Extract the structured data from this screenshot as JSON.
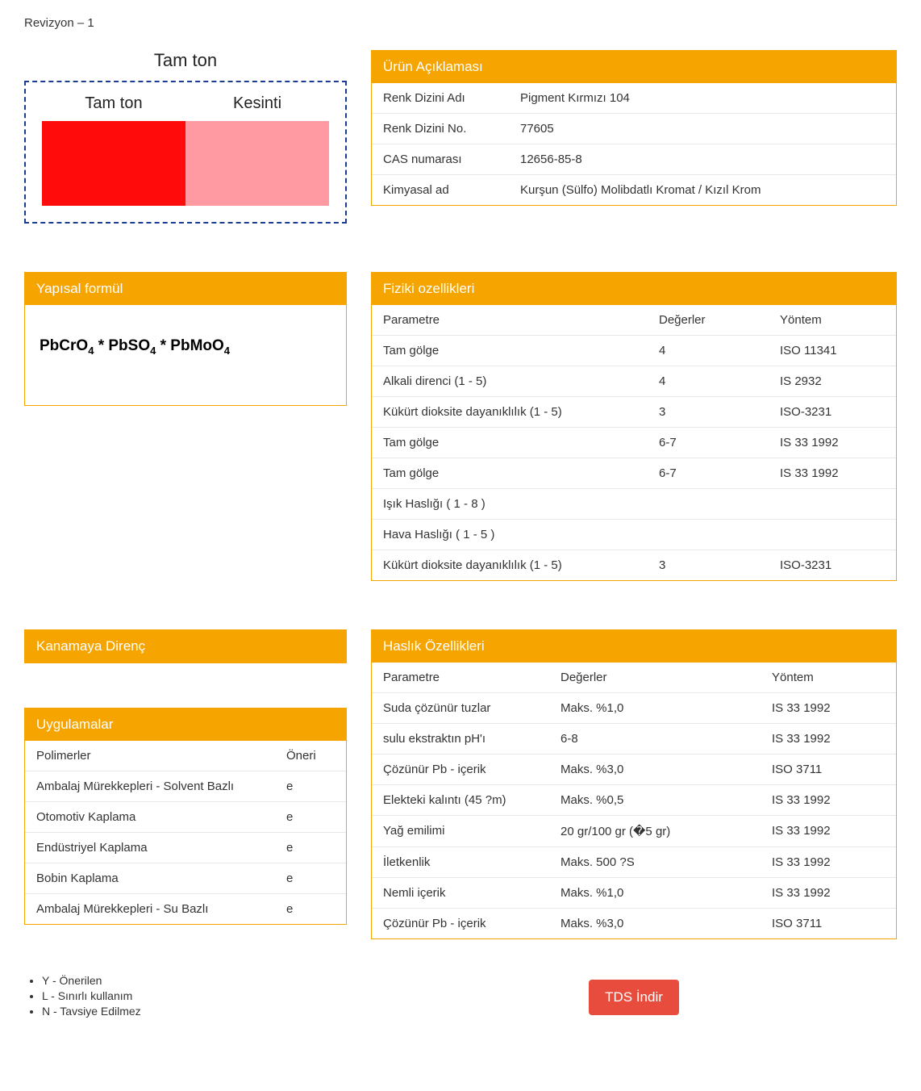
{
  "revision": "Revizyon – 1",
  "swatch": {
    "title": "Tam ton",
    "left_label": "Tam ton",
    "right_label": "Kesinti",
    "left_color": "#ff0b0b",
    "right_color": "#ff9aa3",
    "border_color": "#1a3d8f"
  },
  "product_desc": {
    "title": "Ürün Açıklaması",
    "rows": [
      {
        "label": "Renk Dizini Adı",
        "value": "Pigment Kırmızı 104"
      },
      {
        "label": "Renk Dizini No.",
        "value": "77605"
      },
      {
        "label": "CAS numarası",
        "value": "12656-85-8"
      },
      {
        "label": "Kimyasal ad",
        "value": "Kurşun (Sülfo) Molibdatlı Kromat / Kızıl Krom"
      }
    ]
  },
  "formula": {
    "title": "Yapısal formül",
    "text_parts": [
      "PbCrO",
      "4",
      " * PbSO",
      "4",
      " * PbMoO",
      "4"
    ]
  },
  "physical": {
    "title": "Fiziki ozellikleri",
    "headers": {
      "c1": "Parametre",
      "c2": "Değerler",
      "c3": "Yöntem"
    },
    "rows": [
      {
        "c1": "Tam gölge",
        "c2": "4",
        "c3": "ISO 11341"
      },
      {
        "c1": "Alkali direnci (1 - 5)",
        "c2": "4",
        "c3": "IS 2932"
      },
      {
        "c1": "Kükürt dioksite dayanıklılık (1 - 5)",
        "c2": "3",
        "c3": "ISO-3231"
      },
      {
        "c1": "Tam gölge",
        "c2": "6-7",
        "c3": "IS 33 1992"
      },
      {
        "c1": "Tam gölge",
        "c2": "6-7",
        "c3": "IS 33 1992"
      },
      {
        "c1": "Işık Haslığı ( 1 - 8 )",
        "c2": "",
        "c3": ""
      },
      {
        "c1": "Hava Haslığı ( 1 - 5 )",
        "c2": "",
        "c3": ""
      },
      {
        "c1": "Kükürt dioksite dayanıklılık (1 - 5)",
        "c2": "3",
        "c3": "ISO-3231"
      }
    ]
  },
  "bleeding": {
    "title": "Kanamaya Direnç"
  },
  "applications": {
    "title": "Uygulamalar",
    "headers": {
      "c1": "Polimerler",
      "c2": "Öneri"
    },
    "rows": [
      {
        "c1": "Ambalaj Mürekkepleri - Solvent Bazlı",
        "c2": "e"
      },
      {
        "c1": "Otomotiv Kaplama",
        "c2": "e"
      },
      {
        "c1": "Endüstriyel Kaplama",
        "c2": "e"
      },
      {
        "c1": "Bobin Kaplama",
        "c2": "e"
      },
      {
        "c1": "Ambalaj Mürekkepleri - Su Bazlı",
        "c2": "e"
      }
    ]
  },
  "fastness": {
    "title": "Haslık Özellikleri",
    "headers": {
      "c1": "Parametre",
      "c2": "Değerler",
      "c3": "Yöntem"
    },
    "rows": [
      {
        "c1": "Suda çözünür tuzlar",
        "c2": "Maks. %1,0",
        "c3": "IS 33 1992"
      },
      {
        "c1": "sulu ekstraktın pH'ı",
        "c2": "6-8",
        "c3": "IS 33 1992"
      },
      {
        "c1": "Çözünür Pb - içerik",
        "c2": "Maks. %3,0",
        "c3": "ISO 3711"
      },
      {
        "c1": "Elekteki kalıntı (45 ?m)",
        "c2": "Maks. %0,5",
        "c3": "IS 33 1992"
      },
      {
        "c1": "Yağ emilimi",
        "c2": "20 gr/100 gr (�5 gr)",
        "c3": "IS 33 1992"
      },
      {
        "c1": "İletkenlik",
        "c2": "Maks. 500 ?S",
        "c3": "IS 33 1992"
      },
      {
        "c1": "Nemli içerik",
        "c2": "Maks. %1,0",
        "c3": "IS 33 1992"
      },
      {
        "c1": "Çözünür Pb - içerik",
        "c2": "Maks. %3,0",
        "c3": "ISO 3711"
      }
    ]
  },
  "legend": {
    "items": [
      "Y - Önerilen",
      "L - Sınırlı kullanım",
      "N - Tavsiye Edilmez"
    ]
  },
  "download": {
    "label": "TDS İndir",
    "bg": "#e74c3c"
  },
  "colors": {
    "brand_orange": "#f5a400"
  }
}
